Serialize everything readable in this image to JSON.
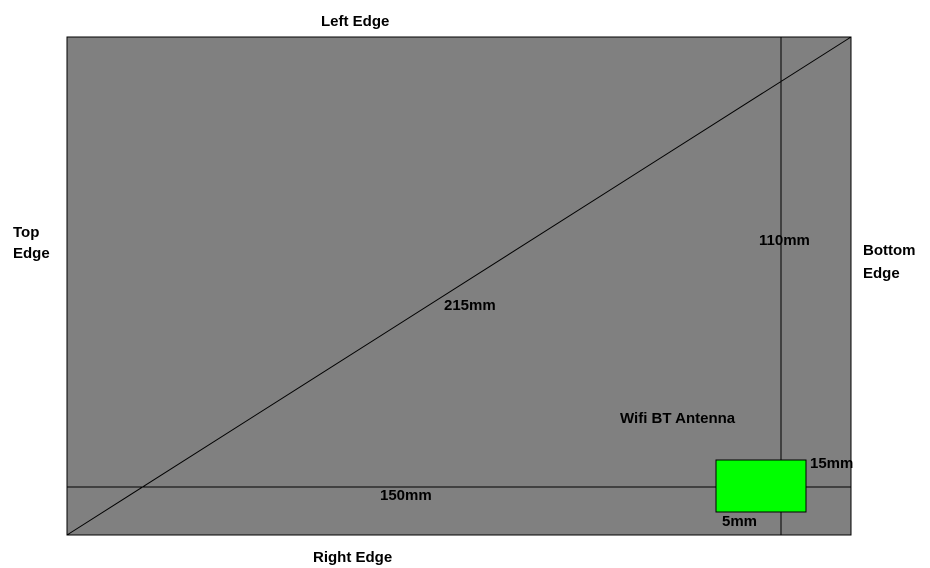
{
  "edges": {
    "left": "Left Edge",
    "right": "Right Edge",
    "top_line1": "Top",
    "top_line2": "Edge",
    "bottom_line1": "Bottom",
    "bottom_line2": "Edge"
  },
  "dimensions": {
    "diagonal": "215mm",
    "height": "110mm",
    "width": "150mm",
    "antenna_height": "15mm",
    "antenna_offset": "5mm"
  },
  "antenna": {
    "label": "Wifi BT Antenna"
  },
  "colors": {
    "panel": "#808080",
    "antenna": "#00ff00",
    "lines": "#000000"
  }
}
